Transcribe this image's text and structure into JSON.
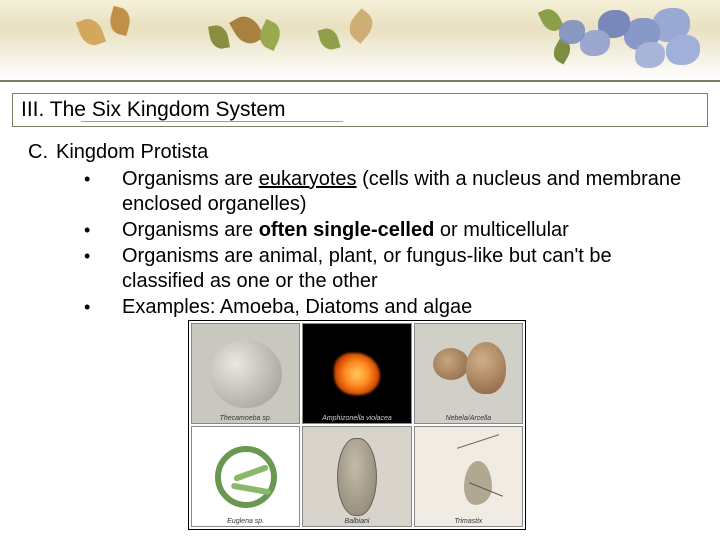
{
  "header": {
    "title": "III. The Six Kingdom System"
  },
  "section": {
    "marker": "C.",
    "heading": "Kingdom Protista",
    "bullets": [
      {
        "pre": "Organisms are ",
        "em": "eukaryotes",
        "post": " (cells with a nucleus and membrane enclosed organelles)",
        "emStyle": "ul"
      },
      {
        "pre": "Organisms are ",
        "em": "often single-celled",
        "post": " or multicellular",
        "emStyle": "b"
      },
      {
        "pre": "Organisms are animal, plant, or fungus-like but can't be classified as one or the other",
        "em": "",
        "post": "",
        "emStyle": ""
      },
      {
        "pre": "Examples: Amoeba, Diatoms and algae",
        "em": "",
        "post": "",
        "emStyle": ""
      }
    ]
  },
  "figure": {
    "captions": [
      "Thecamoeba sp.",
      "Amphizonella violacea",
      "Nebela/Arcella",
      "Euglena sp.",
      "Balbiani",
      "Trimastix"
    ]
  },
  "style": {
    "accent_underline": "#88b84c",
    "box_border": "#808060",
    "body_font": "Comic Sans MS"
  }
}
